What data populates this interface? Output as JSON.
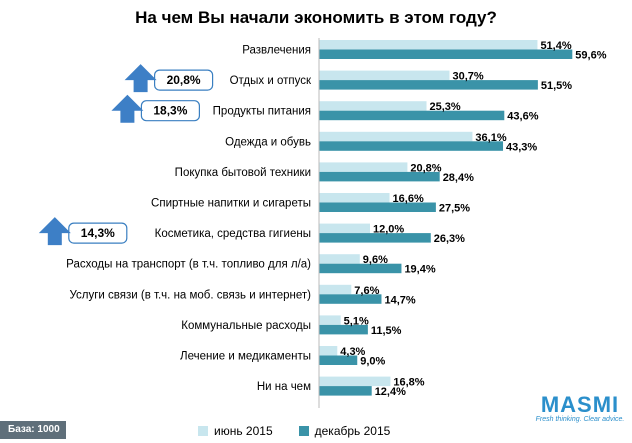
{
  "chart_data": {
    "type": "bar",
    "orientation": "horizontal",
    "title": "На чем Вы начали экономить в этом году?",
    "categories": [
      "Развлечения",
      "Отдых и отпуск",
      "Продукты питания",
      "Одежда и обувь",
      "Покупка бытовой техники",
      "Спиртные напитки и сигареты",
      "Косметика, средства гигиены",
      "Расходы на транспорт (в т.ч. топливо для л/а)",
      "Услуги связи (в т.ч. на моб. связь и интернет)",
      "Коммунальные расходы",
      "Лечение и медикаменты",
      "Ни на чем"
    ],
    "series": [
      {
        "name": "июнь 2015",
        "color": "#c8e6ee",
        "values": [
          51.4,
          30.7,
          25.3,
          36.1,
          20.8,
          16.6,
          12.0,
          9.6,
          7.6,
          5.1,
          4.3,
          16.8
        ],
        "labels": [
          "51,4%",
          "30,7%",
          "25,3%",
          "36,1%",
          "20,8%",
          "16,6%",
          "12,0%",
          "9,6%",
          "7,6%",
          "5,1%",
          "4,3%",
          "16,8%"
        ]
      },
      {
        "name": "декабрь 2015",
        "color": "#3a93a8",
        "values": [
          59.6,
          51.5,
          43.6,
          43.3,
          28.4,
          27.5,
          26.3,
          19.4,
          14.7,
          11.5,
          9.0,
          12.4
        ],
        "labels": [
          "59,6%",
          "51,5%",
          "43,6%",
          "43,3%",
          "28,4%",
          "27,5%",
          "26,3%",
          "19,4%",
          "14,7%",
          "11,5%",
          "9,0%",
          "12,4%"
        ]
      }
    ],
    "xlim": [
      0,
      70
    ],
    "legend_position": "bottom",
    "grid": false,
    "annotations": [
      {
        "category": "Отдых и отпуск",
        "text": "20,8%",
        "icon": "up-arrow-icon"
      },
      {
        "category": "Продукты питания",
        "text": "18,3%",
        "icon": "up-arrow-icon"
      },
      {
        "category": "Косметика, средства гигиены",
        "text": "14,3%",
        "icon": "up-arrow-icon"
      }
    ]
  },
  "footer": {
    "base_label": "База:  1000",
    "logo_text": "MASMI",
    "logo_tagline": "Fresh thinking. Clear advice."
  }
}
